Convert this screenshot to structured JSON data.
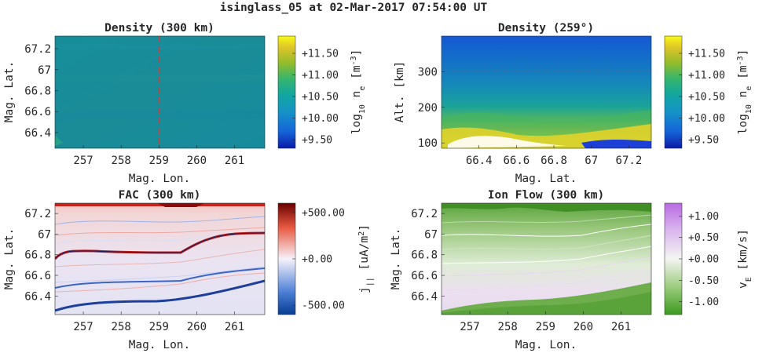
{
  "figure": {
    "title": "isinglass_05 at 02-Mar-2017 07:54:00 UT"
  },
  "chart_data": [
    {
      "type": "heatmap",
      "title": "Density (300 km)",
      "xlabel": "Mag. Lon.",
      "ylabel": "Mag. Lat.",
      "xticks": [
        "257",
        "258",
        "259",
        "260",
        "261"
      ],
      "xtick_values": [
        257,
        258,
        259,
        260,
        261
      ],
      "yticks": [
        "66.4",
        "66.6",
        "66.8",
        "67",
        "67.2"
      ],
      "ytick_values": [
        66.4,
        66.6,
        66.8,
        67.0,
        67.2
      ],
      "xlim": [
        256.25,
        261.8
      ],
      "ylim": [
        66.25,
        67.32
      ],
      "colormap": "parula",
      "colorbar": {
        "label_parts": [
          "log",
          "10",
          " n",
          "e",
          " [m",
          "-3",
          "]"
        ],
        "ticks": [
          "+9.50",
          "+10.00",
          "+10.50",
          "+11.00",
          "+11.50"
        ],
        "tick_values": [
          9.5,
          10.0,
          10.5,
          11.0,
          11.5
        ],
        "range": [
          9.3,
          11.9
        ]
      },
      "guide_line": {
        "orientation": "vertical",
        "value": 259,
        "color": "#c83c3c"
      },
      "approx_value": 10.2
    },
    {
      "type": "heatmap",
      "title": "Density (259°)",
      "xlabel": "Mag. Lat.",
      "ylabel": "Alt. [km]",
      "xticks": [
        "66.4",
        "66.6",
        "66.8",
        "67",
        "67.2"
      ],
      "xtick_values": [
        66.4,
        66.6,
        66.8,
        67.0,
        67.2
      ],
      "yticks": [
        "100",
        "200",
        "300"
      ],
      "ytick_values": [
        100,
        200,
        300
      ],
      "xlim": [
        66.2,
        67.32
      ],
      "ylim": [
        85,
        400
      ],
      "colormap": "parula",
      "colorbar": {
        "label_parts": [
          "log",
          "10",
          " n",
          "e",
          " [m",
          "-3",
          "]"
        ],
        "ticks": [
          "+9.50",
          "+10.00",
          "+10.50",
          "+11.00",
          "+11.50"
        ],
        "tick_values": [
          9.5,
          10.0,
          10.5,
          11.0,
          11.5
        ],
        "range": [
          9.3,
          11.9
        ]
      },
      "guide_line": {
        "orientation": "horizontal",
        "value": 300,
        "color": "#c83c3c"
      }
    },
    {
      "type": "heatmap",
      "title": "FAC (300 km)",
      "xlabel": "Mag. Lon.",
      "ylabel": "Mag. Lat.",
      "xticks": [
        "257",
        "258",
        "259",
        "260",
        "261"
      ],
      "xtick_values": [
        257,
        258,
        259,
        260,
        261
      ],
      "yticks": [
        "66.4",
        "66.6",
        "66.8",
        "67",
        "67.2"
      ],
      "ytick_values": [
        66.4,
        66.6,
        66.8,
        67.0,
        67.2
      ],
      "xlim": [
        256.25,
        261.8
      ],
      "ylim": [
        66.22,
        67.3
      ],
      "colormap": "red-white-blue",
      "colorbar": {
        "label_parts": [
          "j",
          "||",
          " [uA/m",
          "2",
          "]"
        ],
        "ticks": [
          "-500.00",
          "+0.00",
          "+500.00"
        ],
        "tick_values": [
          -500,
          0,
          500
        ],
        "range": [
          -600,
          600
        ]
      }
    },
    {
      "type": "heatmap",
      "title": "Ion Flow (300 km)",
      "xlabel": "Mag. Lon.",
      "ylabel": "Mag. Lat.",
      "xticks": [
        "257",
        "258",
        "259",
        "260",
        "261"
      ],
      "xtick_values": [
        257,
        258,
        259,
        260,
        261
      ],
      "yticks": [
        "66.4",
        "66.6",
        "66.8",
        "67",
        "67.2"
      ],
      "ytick_values": [
        66.4,
        66.6,
        66.8,
        67.0,
        67.2
      ],
      "xlim": [
        256.25,
        261.8
      ],
      "ylim": [
        66.22,
        67.3
      ],
      "colormap": "purple-white-green",
      "colorbar": {
        "label_parts": [
          "v",
          "E",
          " [km/s]"
        ],
        "ticks": [
          "-1.00",
          "-0.50",
          "+0.00",
          "+0.50",
          "+1.00"
        ],
        "tick_values": [
          -1.0,
          -0.5,
          0.0,
          0.5,
          1.0
        ],
        "range": [
          -1.3,
          1.3
        ]
      }
    }
  ]
}
